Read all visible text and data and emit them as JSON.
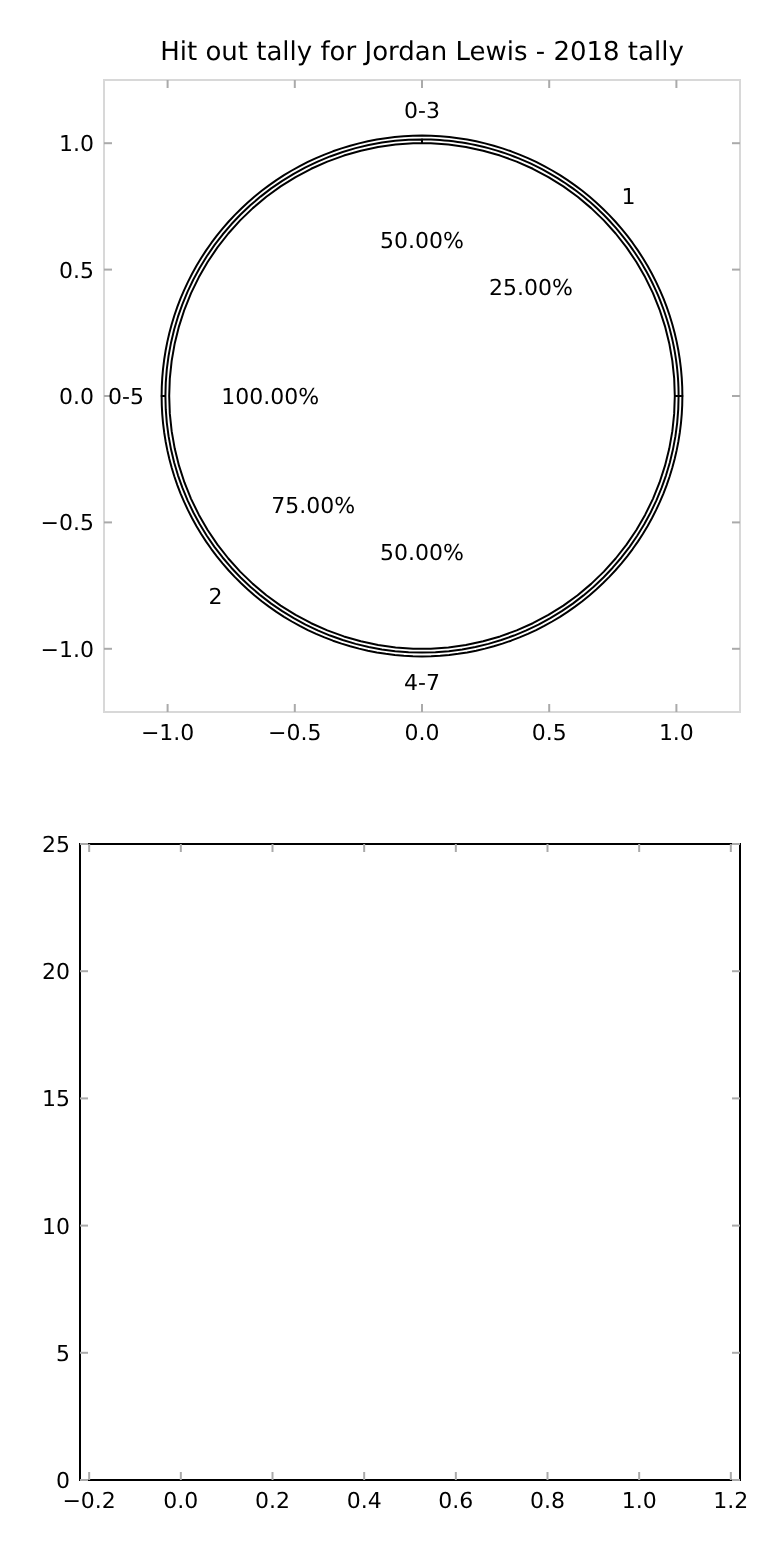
{
  "chart_data": [
    {
      "type": "scatter",
      "title": "Hit out tally for Jordan Lewis - 2018 tally",
      "xlim": [
        -1.25,
        1.25
      ],
      "ylim": [
        -1.25,
        1.25
      ],
      "xticks": [
        {
          "value": -1,
          "label": "−1.0"
        },
        {
          "value": -0.5,
          "label": "−0.5"
        },
        {
          "value": 0,
          "label": "0.0"
        },
        {
          "value": 0.5,
          "label": "0.5"
        },
        {
          "value": 1,
          "label": "1.0"
        }
      ],
      "yticks": [
        {
          "value": -1,
          "label": "−1.0"
        },
        {
          "value": -0.5,
          "label": "−0.5"
        },
        {
          "value": 0,
          "label": "0.0"
        },
        {
          "value": 0.5,
          "label": "0.5"
        },
        {
          "value": 1,
          "label": "1.0"
        }
      ]
    },
    {
      "type": "pie",
      "categories": [
        "0-3",
        "4-7"
      ],
      "values": [
        50,
        50
      ],
      "colors": [
        "#ffffff",
        "#ffffff"
      ],
      "value_labels": [
        "50.00%",
        "50.00%"
      ]
    },
    {
      "type": "pie",
      "categories": [
        "1",
        "2"
      ],
      "values": [
        25,
        75
      ],
      "colors": [
        "#ffffff",
        "#ffffff"
      ],
      "value_labels": [
        "25.00%",
        "75.00%"
      ]
    },
    {
      "type": "pie",
      "categories": [
        "0-5"
      ],
      "values": [
        100
      ],
      "colors": [
        "#ffffff"
      ],
      "value_labels": [
        "100.00%"
      ]
    },
    {
      "type": "scatter",
      "xlim": [
        -0.22,
        1.22
      ],
      "ylim": [
        0,
        25
      ],
      "xticks": [
        {
          "value": -0.2,
          "label": "−0.2"
        },
        {
          "value": 0,
          "label": "0.0"
        },
        {
          "value": 0.2,
          "label": "0.2"
        },
        {
          "value": 0.4,
          "label": "0.4"
        },
        {
          "value": 0.6,
          "label": "0.6"
        },
        {
          "value": 0.8,
          "label": "0.8"
        },
        {
          "value": 1,
          "label": "1.0"
        },
        {
          "value": 1.2,
          "label": "1.2"
        }
      ],
      "yticks": [
        0,
        5,
        10,
        15,
        20,
        25
      ]
    }
  ]
}
